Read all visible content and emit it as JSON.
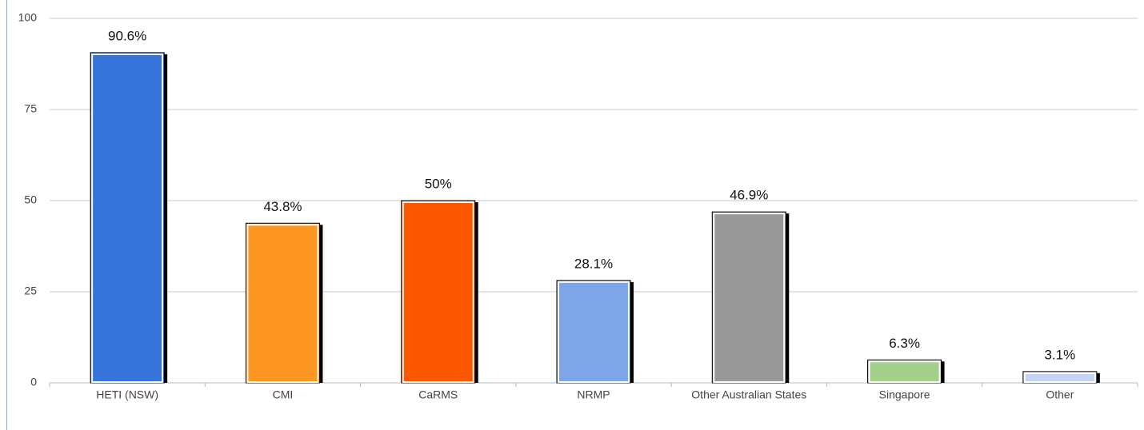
{
  "chart_data": {
    "type": "bar",
    "categories": [
      "HETI (NSW)",
      "CMI",
      "CaRMS",
      "NRMP",
      "Other Australian States",
      "Singapore",
      "Other"
    ],
    "values": [
      90.6,
      43.8,
      50,
      28.1,
      46.9,
      6.3,
      3.1
    ],
    "value_labels": [
      "90.6%",
      "43.8%",
      "50%",
      "28.1%",
      "46.9%",
      "6.3%",
      "3.1%"
    ],
    "colors": [
      "#3674d9",
      "#fd9721",
      "#fd5800",
      "#7da6e8",
      "#999999",
      "#a3d08a",
      "#c5d4f4"
    ],
    "ylim": [
      0,
      100
    ],
    "yticks": [
      0,
      25,
      50,
      75,
      100
    ],
    "grid": true
  }
}
